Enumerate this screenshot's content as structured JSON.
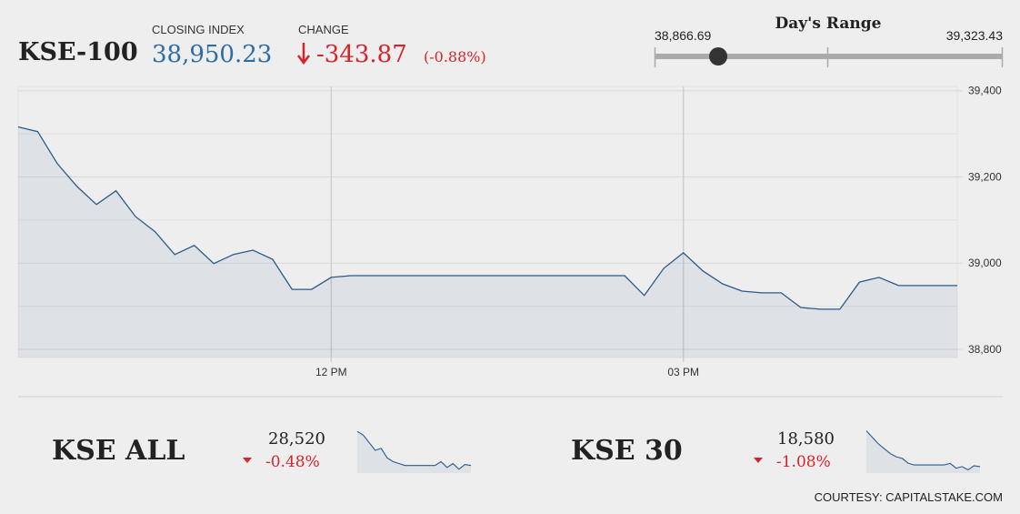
{
  "header": {
    "title": "KSE-100",
    "closing_label": "CLOSING INDEX",
    "closing": {
      "value": 38950.23,
      "label": "38,950.23"
    },
    "change_label": "CHANGE",
    "change": -343.87,
    "change_pct": {
      "value": -0.88,
      "label": "(-0.88%)"
    }
  },
  "day_range": {
    "title": "Day's Range",
    "low": {
      "value": 38866.69,
      "label": "38,866.69"
    },
    "high": {
      "value": 39323.43,
      "label": "39,323.43"
    }
  },
  "chart_data": [
    {
      "type": "line",
      "color": "#2a5a8c",
      "categories": [
        null,
        null,
        null,
        null,
        null,
        null,
        null,
        null,
        null,
        null,
        null,
        null,
        null,
        null,
        null,
        null,
        "12 PM",
        null,
        null,
        null,
        null,
        null,
        null,
        null,
        null,
        null,
        null,
        null,
        null,
        null,
        null,
        null,
        null,
        null,
        "03 PM",
        null,
        null,
        null,
        null,
        null,
        null,
        null,
        null,
        null,
        null,
        null,
        null,
        null,
        null
      ],
      "values": [
        39316,
        39305,
        39231,
        39178,
        39136,
        39168,
        39108,
        39073,
        39020,
        39041,
        38999,
        39020,
        39030,
        39009,
        38939,
        38939,
        38967,
        38971,
        38971,
        38971,
        38971,
        38971,
        38971,
        38971,
        38971,
        38971,
        38971,
        38971,
        38971,
        38971,
        38971,
        38971,
        38925,
        38988,
        39024,
        38982,
        38952,
        38935,
        38931,
        38931,
        38897,
        38893,
        38893,
        38956,
        38967,
        38948,
        38948,
        38948,
        38948
      ],
      "ylim": [
        38781,
        39410
      ],
      "yticks": [
        {
          "value": 38800,
          "label": "38,800"
        },
        {
          "value": 39000,
          "label": "39,000"
        },
        {
          "value": 39200,
          "label": "39,200"
        },
        {
          "value": 39400,
          "label": "39,400"
        }
      ],
      "minor_yticks": [
        38900,
        39100,
        39300
      ],
      "grid": true
    },
    {
      "type": "line",
      "color": "#2a5a8c",
      "values": [
        28700,
        28680,
        28640,
        28600,
        28610,
        28560,
        28540,
        28530,
        28520,
        28520,
        28520,
        28520,
        28520,
        28520,
        28540,
        28510,
        28530,
        28500,
        28525,
        28520
      ],
      "ylim": [
        28480,
        28720
      ]
    },
    {
      "type": "line",
      "color": "#2a5a8c",
      "values": [
        18800,
        18760,
        18720,
        18690,
        18660,
        18640,
        18630,
        18600,
        18590,
        18590,
        18590,
        18590,
        18590,
        18590,
        18600,
        18570,
        18580,
        18560,
        18585,
        18580
      ],
      "ylim": [
        18540,
        18820
      ]
    }
  ],
  "indices": [
    {
      "name": "KSE ALL",
      "value": {
        "value": 28520,
        "label": "28,520"
      },
      "change": {
        "value": -0.48,
        "label": "-0.48%"
      }
    },
    {
      "name": "KSE 30",
      "value": {
        "value": 18580,
        "label": "18,580"
      },
      "change": {
        "value": -1.08,
        "label": "-1.08%"
      }
    }
  ],
  "footer": "COURTESY: CAPITALSTAKE.COM"
}
